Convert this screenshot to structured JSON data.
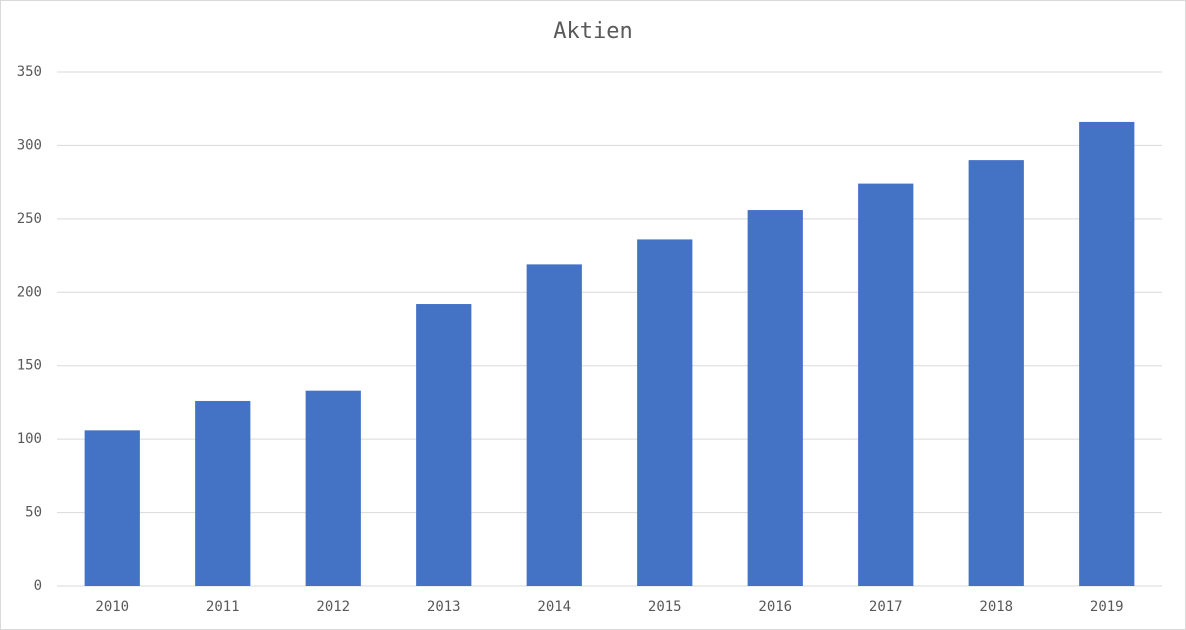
{
  "chart_data": {
    "type": "bar",
    "title": "Aktien",
    "categories": [
      "2010",
      "2011",
      "2012",
      "2013",
      "2014",
      "2015",
      "2016",
      "2017",
      "2018",
      "2019"
    ],
    "values": [
      106,
      126,
      133,
      192,
      219,
      236,
      256,
      274,
      290,
      316
    ],
    "color": "#4472c4",
    "ylim": [
      0,
      350
    ],
    "yticks": [
      0,
      50,
      100,
      150,
      200,
      250,
      300,
      350
    ],
    "grid": true
  }
}
